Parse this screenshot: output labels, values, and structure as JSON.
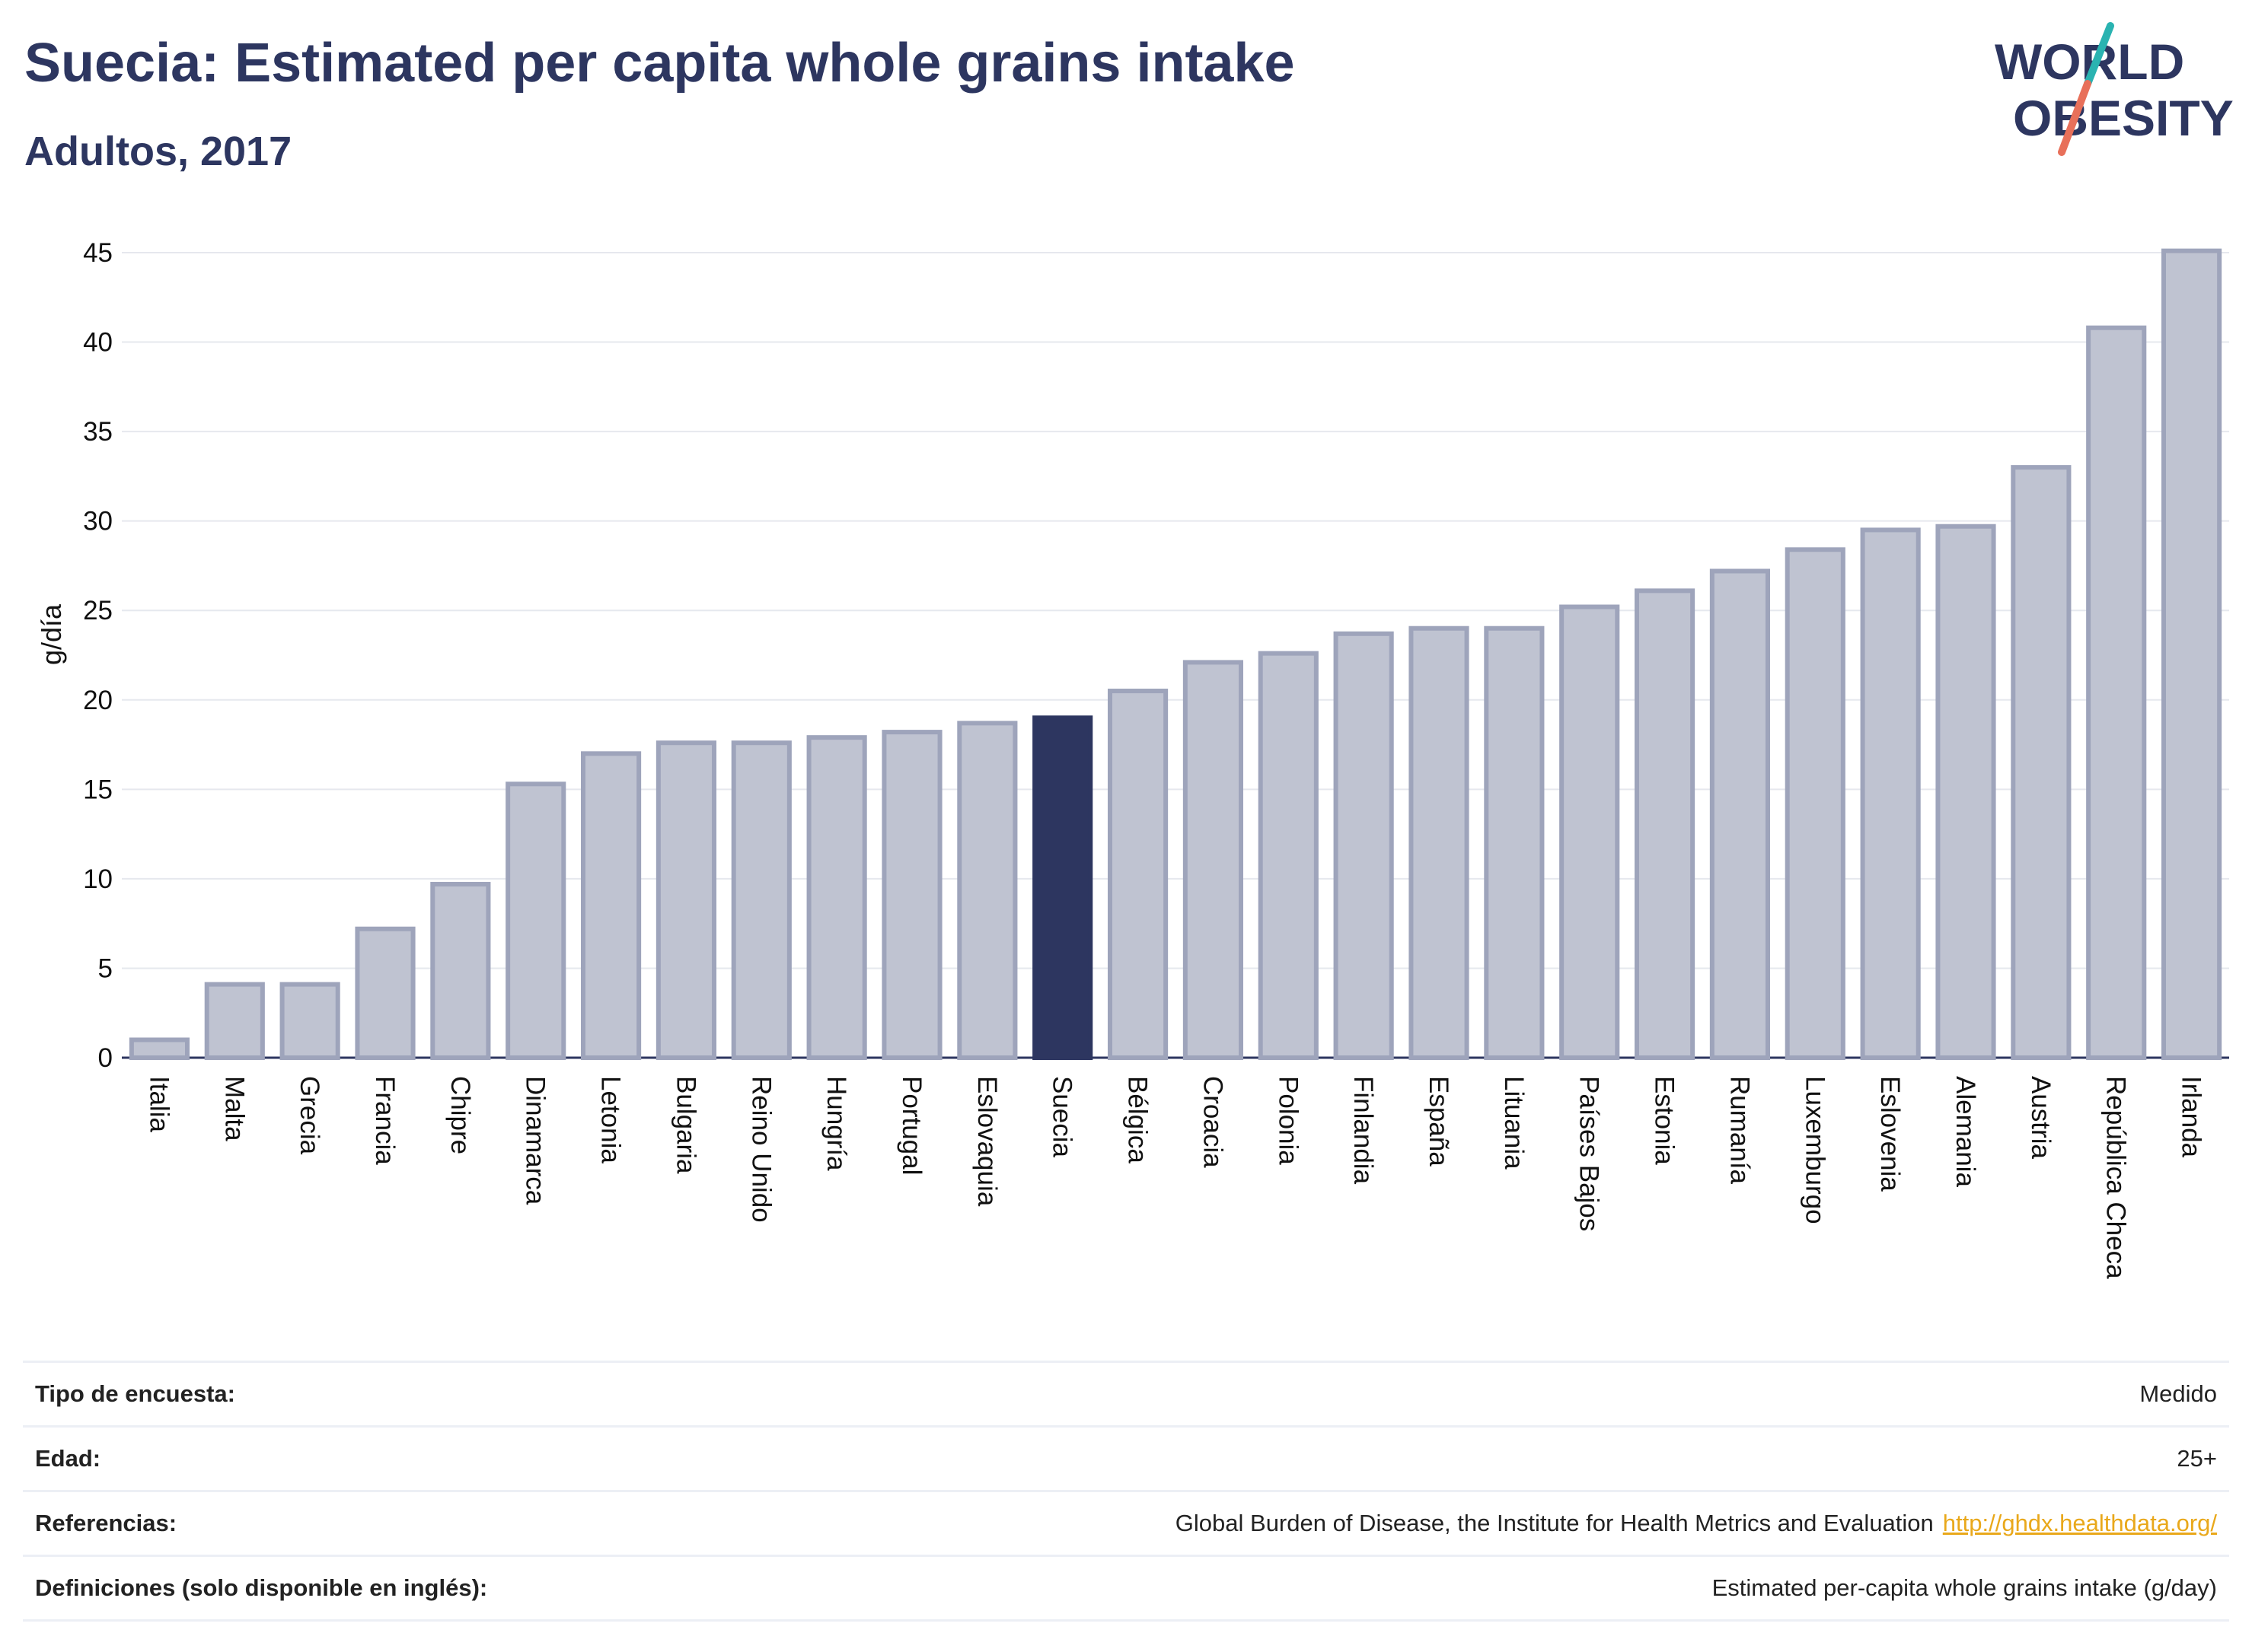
{
  "header": {
    "title": "Suecia: Estimated per capita whole grains intake",
    "subtitle": "Adultos, 2017"
  },
  "logo": {
    "line1": "WORLD",
    "line2": "OBESITY",
    "text_color": "#2d3660",
    "accent_teal": "#2ab3b1",
    "accent_coral": "#e8705a"
  },
  "colors": {
    "bar": "#bfc3d1",
    "bar_border": "#9ea4bb",
    "highlight": "#2d3660",
    "grid": "#e6e8ee",
    "axis_text": "#111111"
  },
  "chart_data": {
    "type": "bar",
    "ylabel": "g/día",
    "xlabel": "",
    "ylim": [
      0,
      45
    ],
    "yticks": [
      0,
      5,
      10,
      15,
      20,
      25,
      30,
      35,
      40,
      45
    ],
    "grid": true,
    "highlight": "Suecia",
    "categories": [
      "Italia",
      "Malta",
      "Grecia",
      "Francia",
      "Chipre",
      "Dinamarca",
      "Letonia",
      "Bulgaria",
      "Reino Unido",
      "Hungría",
      "Portugal",
      "Eslovaquia",
      "Suecia",
      "Bélgica",
      "Croacia",
      "Polonia",
      "Finlandia",
      "España",
      "Lituania",
      "Países Bajos",
      "Estonia",
      "Rumanía",
      "Luxemburgo",
      "Eslovenia",
      "Alemania",
      "Austria",
      "República Checa",
      "Irlanda"
    ],
    "values": [
      1.0,
      4.1,
      4.1,
      7.2,
      9.7,
      15.3,
      17.0,
      17.6,
      17.6,
      17.9,
      18.2,
      18.7,
      19.0,
      20.5,
      22.1,
      22.6,
      23.7,
      24.0,
      24.0,
      25.2,
      26.1,
      27.2,
      28.4,
      29.5,
      29.7,
      33.0,
      40.8,
      45.1
    ]
  },
  "info": {
    "rows": [
      {
        "label": "Tipo de encuesta:",
        "value": "Medido"
      },
      {
        "label": "Edad:",
        "value": "25+"
      },
      {
        "label": "Referencias:",
        "value": "Global Burden of Disease, the Institute for Health Metrics and Evaluation",
        "link": "http://ghdx.healthdata.org/"
      },
      {
        "label": "Definiciones (solo disponible en inglés):",
        "value": "Estimated per-capita whole grains intake (g/day)"
      }
    ]
  }
}
